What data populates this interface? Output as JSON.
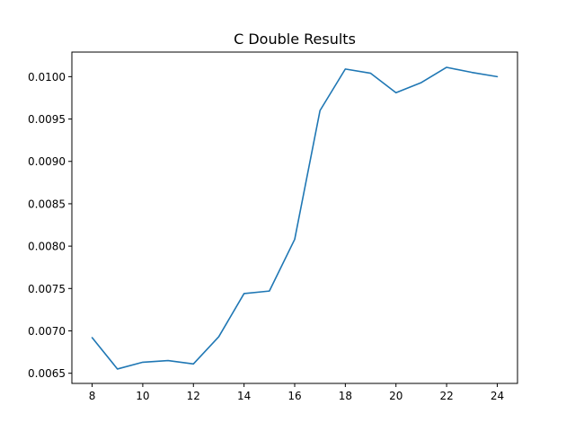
{
  "chart_data": {
    "type": "line",
    "title": "C Double Results",
    "xlabel": "",
    "ylabel": "",
    "xlim": [
      7.2,
      24.8
    ],
    "ylim": [
      0.00638,
      0.01029
    ],
    "xticks": [
      8,
      10,
      12,
      14,
      16,
      18,
      20,
      22,
      24
    ],
    "xtick_labels": [
      "8",
      "10",
      "12",
      "14",
      "16",
      "18",
      "20",
      "22",
      "24"
    ],
    "yticks": [
      0.0065,
      0.007,
      0.0075,
      0.008,
      0.0085,
      0.009,
      0.0095,
      0.01
    ],
    "ytick_labels": [
      "0.0065",
      "0.0070",
      "0.0075",
      "0.0080",
      "0.0085",
      "0.0090",
      "0.0095",
      "0.0100"
    ],
    "grid": false,
    "series": [
      {
        "color": "#1f77b4",
        "x": [
          8,
          9,
          10,
          11,
          12,
          13,
          14,
          15,
          16,
          17,
          18,
          19,
          20,
          21,
          22,
          23,
          24
        ],
        "y": [
          0.00692,
          0.00655,
          0.00663,
          0.00665,
          0.00661,
          0.00693,
          0.00744,
          0.00747,
          0.00808,
          0.0096,
          0.01009,
          0.01004,
          0.00981,
          0.00993,
          0.01011,
          0.01005,
          0.01
        ]
      }
    ]
  }
}
